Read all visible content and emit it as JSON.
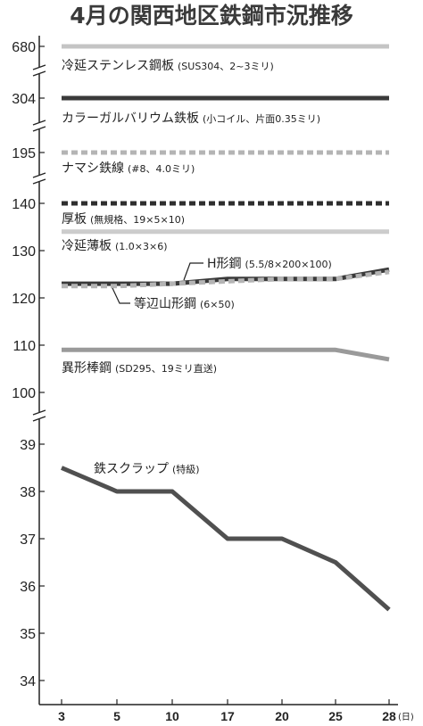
{
  "title": "4月の関西地区鉄鋼市況推移",
  "chart_data": {
    "type": "line",
    "x": [
      3,
      5,
      10,
      17,
      20,
      25,
      28
    ],
    "x_unit": "(日)",
    "y_ticks": [
      680,
      304,
      195,
      140,
      130,
      120,
      110,
      100,
      39,
      38,
      37,
      36,
      35,
      34
    ],
    "axis_breaks": true,
    "grid": false,
    "legend": "none",
    "series": [
      {
        "name": "冷延ステンレス鋼板",
        "spec": "(SUS304、2~3ミリ)",
        "style": "solid-light",
        "color": "#c4c4c4",
        "values": [
          680,
          680,
          680,
          680,
          680,
          680,
          680
        ]
      },
      {
        "name": "カラーガルバリウム鉄板",
        "spec": "(小コイル、片面0.35ミリ)",
        "style": "solid-dark",
        "color": "#3a3a3a",
        "values": [
          304,
          304,
          304,
          304,
          304,
          304,
          304
        ]
      },
      {
        "name": "ナマシ鉄線",
        "spec": "(#8、4.0ミリ)",
        "style": "dashed-light",
        "color": "#b4b4b4",
        "values": [
          195,
          195,
          195,
          195,
          195,
          195,
          195
        ]
      },
      {
        "name": "厚板",
        "spec": "(無規格、19×5×10)",
        "style": "dashed-dark",
        "color": "#2e2e2e",
        "values": [
          140,
          140,
          140,
          140,
          140,
          140,
          140
        ]
      },
      {
        "name": "冷延薄板",
        "spec": "(1.0×3×6)",
        "style": "solid-light",
        "color": "#cccccc",
        "values": [
          134,
          134,
          134,
          134,
          134,
          134,
          134
        ]
      },
      {
        "name": "H形鋼",
        "spec": "(5.5/8×200×100)",
        "style": "solid-dark",
        "color": "#3a3a3a",
        "values": [
          123,
          123,
          123,
          124,
          124,
          124,
          126
        ]
      },
      {
        "name": "等辺山形鋼",
        "spec": "(6×50)",
        "style": "dashed-light",
        "color": "#b4b4b4",
        "values": [
          122.5,
          122.5,
          123,
          123.5,
          124,
          124,
          125.5
        ]
      },
      {
        "name": "異形棒鋼",
        "spec": "(SD295、19ミリ直送)",
        "style": "solid-mid",
        "color": "#9a9a9a",
        "values": [
          109,
          109,
          109,
          109,
          109,
          109,
          107
        ]
      },
      {
        "name": "鉄スクラップ",
        "spec": "(特級)",
        "style": "solid-dark",
        "color": "#505050",
        "values": [
          38.5,
          38,
          38,
          37,
          37,
          36.5,
          35.5
        ]
      }
    ]
  }
}
